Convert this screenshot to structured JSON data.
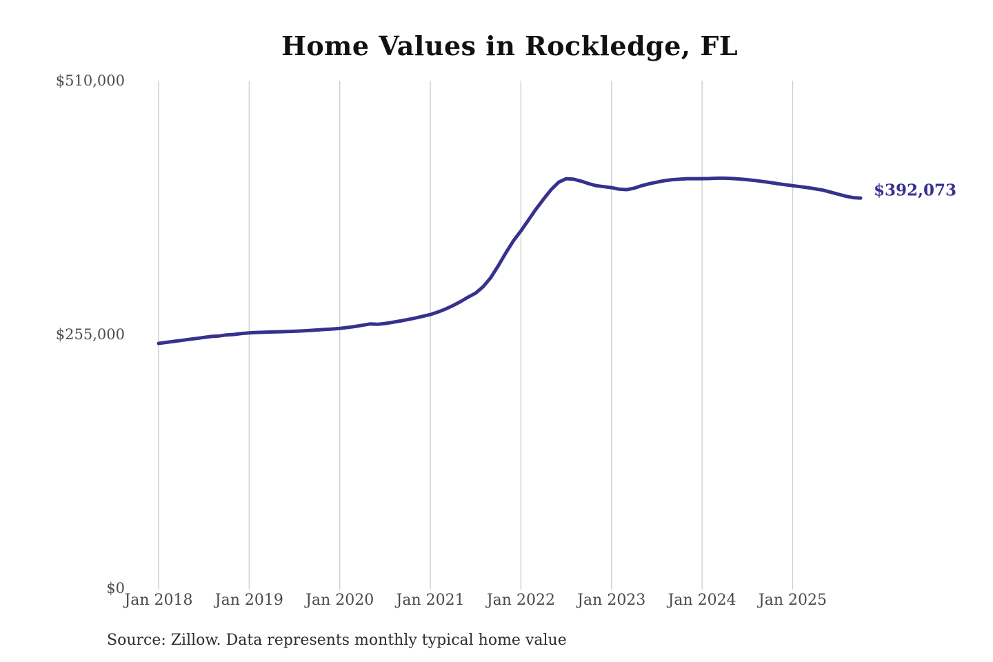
{
  "page": {
    "title": "Home Values in Rockledge, FL",
    "source_note": "Source: Zillow. Data represents monthly typical home value"
  },
  "colors": {
    "line": "#37318e",
    "end_label": "#37318e",
    "gridline": "#cccccc",
    "title_text": "#111111",
    "axis_text": "#4a4a4a"
  },
  "chart_data": {
    "type": "line",
    "title": "Home Values in Rockledge, FL",
    "series_name": "Monthly typical home value",
    "grid": "vertical-only",
    "legend": "none",
    "ylim": [
      0,
      510000
    ],
    "y_ticks": [
      {
        "value": 0,
        "label": "$0"
      },
      {
        "value": 255000,
        "label": "$255,000"
      },
      {
        "value": 510000,
        "label": "$510,000"
      }
    ],
    "x_ticks": [
      {
        "month": "2018-01",
        "label": "Jan 2018"
      },
      {
        "month": "2019-01",
        "label": "Jan 2019"
      },
      {
        "month": "2020-01",
        "label": "Jan 2020"
      },
      {
        "month": "2021-01",
        "label": "Jan 2021"
      },
      {
        "month": "2022-01",
        "label": "Jan 2022"
      },
      {
        "month": "2023-01",
        "label": "Jan 2023"
      },
      {
        "month": "2024-01",
        "label": "Jan 2024"
      },
      {
        "month": "2025-01",
        "label": "Jan 2025"
      }
    ],
    "x": [
      "2018-01",
      "2018-02",
      "2018-03",
      "2018-04",
      "2018-05",
      "2018-06",
      "2018-07",
      "2018-08",
      "2018-09",
      "2018-10",
      "2018-11",
      "2018-12",
      "2019-01",
      "2019-02",
      "2019-03",
      "2019-04",
      "2019-05",
      "2019-06",
      "2019-07",
      "2019-08",
      "2019-09",
      "2019-10",
      "2019-11",
      "2019-12",
      "2020-01",
      "2020-02",
      "2020-03",
      "2020-04",
      "2020-05",
      "2020-06",
      "2020-07",
      "2020-08",
      "2020-09",
      "2020-10",
      "2020-11",
      "2020-12",
      "2021-01",
      "2021-02",
      "2021-03",
      "2021-04",
      "2021-05",
      "2021-06",
      "2021-07",
      "2021-08",
      "2021-09",
      "2021-10",
      "2021-11",
      "2021-12",
      "2022-01",
      "2022-02",
      "2022-03",
      "2022-04",
      "2022-05",
      "2022-06",
      "2022-07",
      "2022-08",
      "2022-09",
      "2022-10",
      "2022-11",
      "2022-12",
      "2023-01",
      "2023-02",
      "2023-03",
      "2023-04",
      "2023-05",
      "2023-06",
      "2023-07",
      "2023-08",
      "2023-09",
      "2023-10",
      "2023-11",
      "2023-12",
      "2024-01",
      "2024-02",
      "2024-03",
      "2024-04",
      "2024-05",
      "2024-06",
      "2024-07",
      "2024-08",
      "2024-09",
      "2024-10",
      "2024-11",
      "2024-12",
      "2025-01",
      "2025-02",
      "2025-03",
      "2025-04",
      "2025-05",
      "2025-06",
      "2025-07",
      "2025-08",
      "2025-09",
      "2025-10"
    ],
    "values": [
      246000,
      247000,
      248000,
      249000,
      250000,
      251000,
      252000,
      253000,
      253500,
      254500,
      255000,
      256000,
      256500,
      257000,
      257200,
      257500,
      257700,
      258000,
      258200,
      258500,
      259000,
      259500,
      260000,
      260500,
      261000,
      262000,
      263000,
      264200,
      265500,
      265200,
      266000,
      267200,
      268500,
      270000,
      271500,
      273200,
      275000,
      277500,
      280500,
      284000,
      288000,
      292500,
      296500,
      303000,
      312000,
      324000,
      337000,
      349000,
      359000,
      370000,
      381000,
      391000,
      400500,
      408000,
      411500,
      411000,
      409000,
      406500,
      404500,
      403500,
      402500,
      401000,
      400500,
      402000,
      404500,
      406500,
      408000,
      409500,
      410500,
      411000,
      411500,
      411500,
      411500,
      411700,
      412000,
      412000,
      411700,
      411200,
      410500,
      409700,
      408700,
      407700,
      406500,
      405500,
      404500,
      403500,
      402500,
      401300,
      400000,
      398000,
      396000,
      394000,
      392500,
      392073
    ],
    "end_value": 392073,
    "end_label": "$392,073"
  }
}
